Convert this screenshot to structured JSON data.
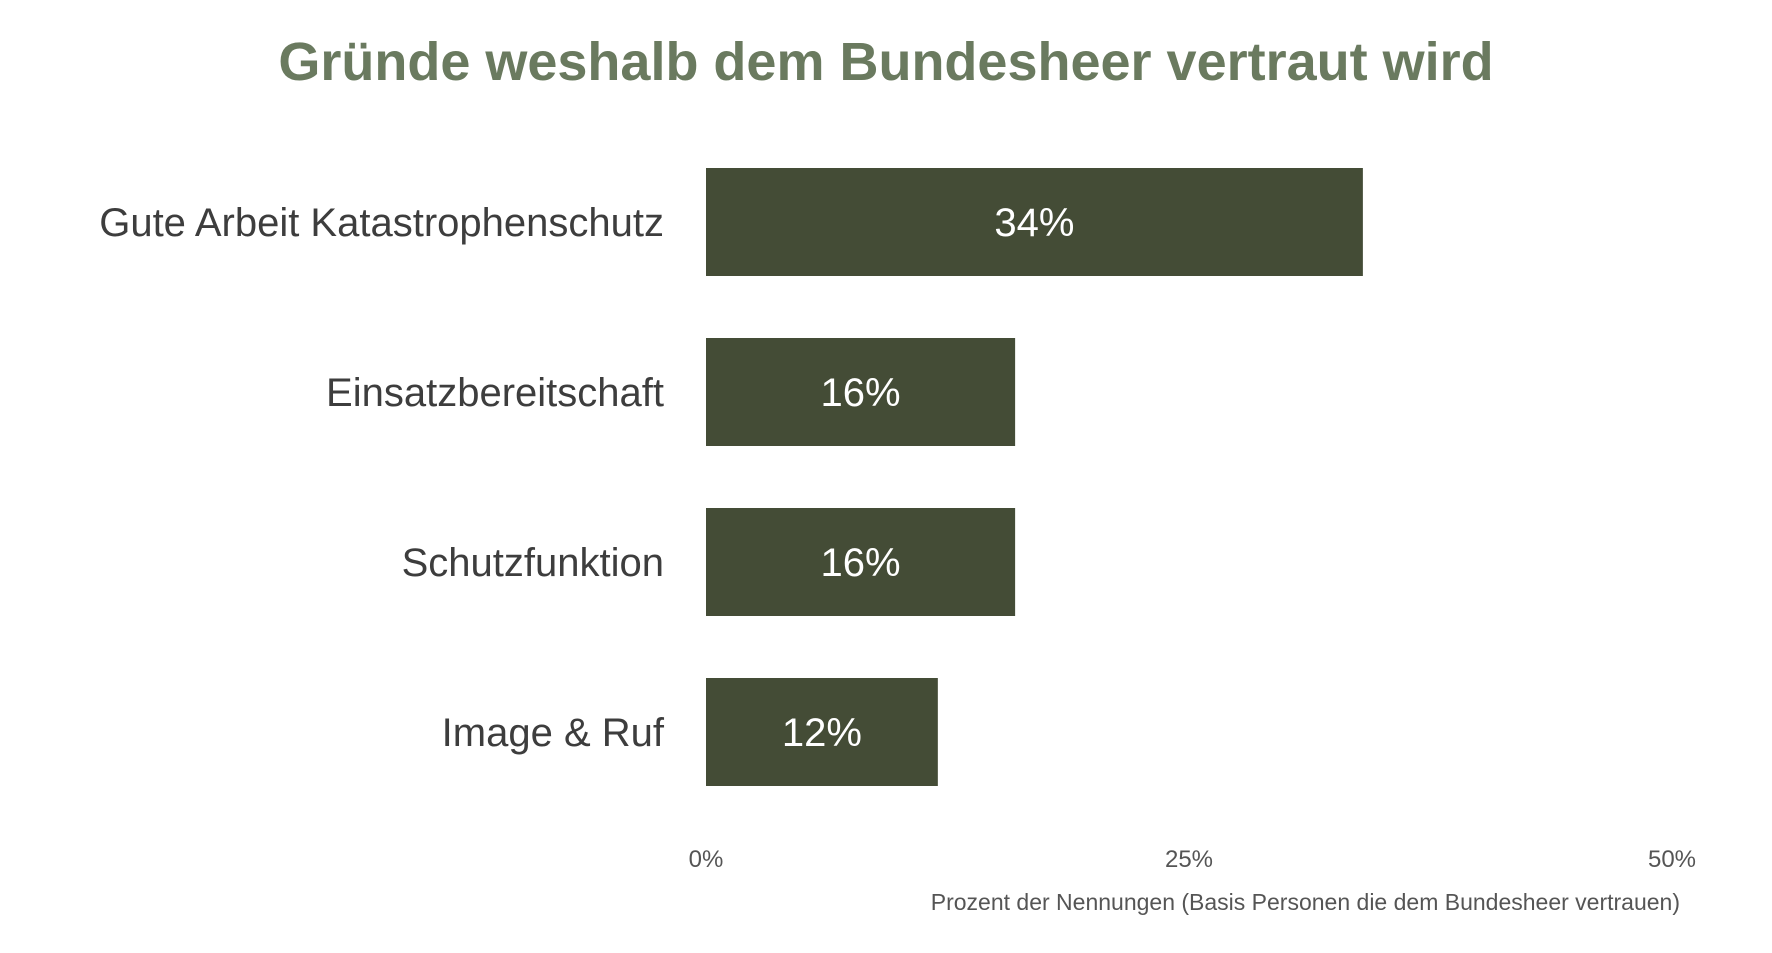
{
  "chart_data": {
    "type": "bar",
    "orientation": "horizontal",
    "title": "Gründe weshalb dem Bundesheer vertraut wird",
    "categories": [
      "Gute Arbeit Katastrophenschutz",
      "Einsatzbereitschaft",
      "Schutzfunktion",
      "Image & Ruf"
    ],
    "values": [
      34,
      16,
      16,
      12
    ],
    "data_labels": [
      "34%",
      "16%",
      "16%",
      "12%"
    ],
    "xlim": [
      0,
      50
    ],
    "xticks": [
      0,
      25,
      50
    ],
    "xtick_labels": [
      "0%",
      "25%",
      "50%"
    ],
    "xlabel": "Prozent der Nennungen (Basis Personen die dem Bundesheer vertrauen)",
    "ylabel": "",
    "grid": false,
    "legend": false,
    "colors": {
      "bar": "#444c36",
      "title": "#6a7a5f",
      "text": "#3d3d3d"
    }
  }
}
